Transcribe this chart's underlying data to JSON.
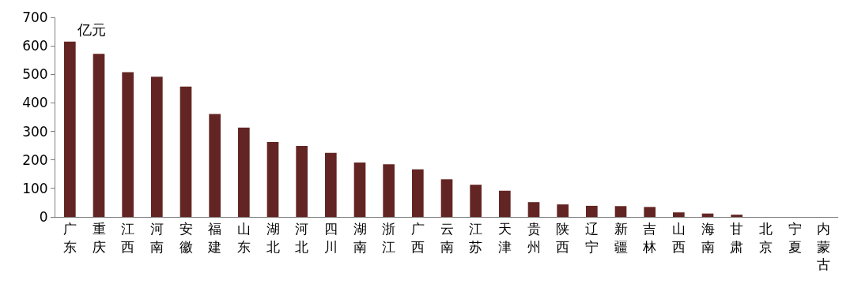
{
  "chart_data": {
    "type": "bar",
    "categories": [
      "广东",
      "重庆",
      "江西",
      "河南",
      "安徽",
      "福建",
      "山东",
      "湖北",
      "河北",
      "四川",
      "湖南",
      "浙江",
      "广西",
      "云南",
      "江苏",
      "天津",
      "贵州",
      "陕西",
      "辽宁",
      "新疆",
      "吉林",
      "山西",
      "海南",
      "甘肃",
      "北京",
      "宁夏",
      "内蒙古"
    ],
    "values": [
      615,
      572,
      508,
      492,
      457,
      361,
      313,
      263,
      249,
      225,
      191,
      185,
      167,
      132,
      113,
      92,
      52,
      44,
      39,
      38,
      35,
      16,
      12,
      8,
      0,
      0,
      0
    ],
    "color": "#632523",
    "ylim": [
      0,
      700
    ],
    "yticks": [
      0,
      100,
      200,
      300,
      400,
      500,
      600,
      700
    ],
    "legend": false,
    "annotations": [
      "亿元"
    ]
  }
}
